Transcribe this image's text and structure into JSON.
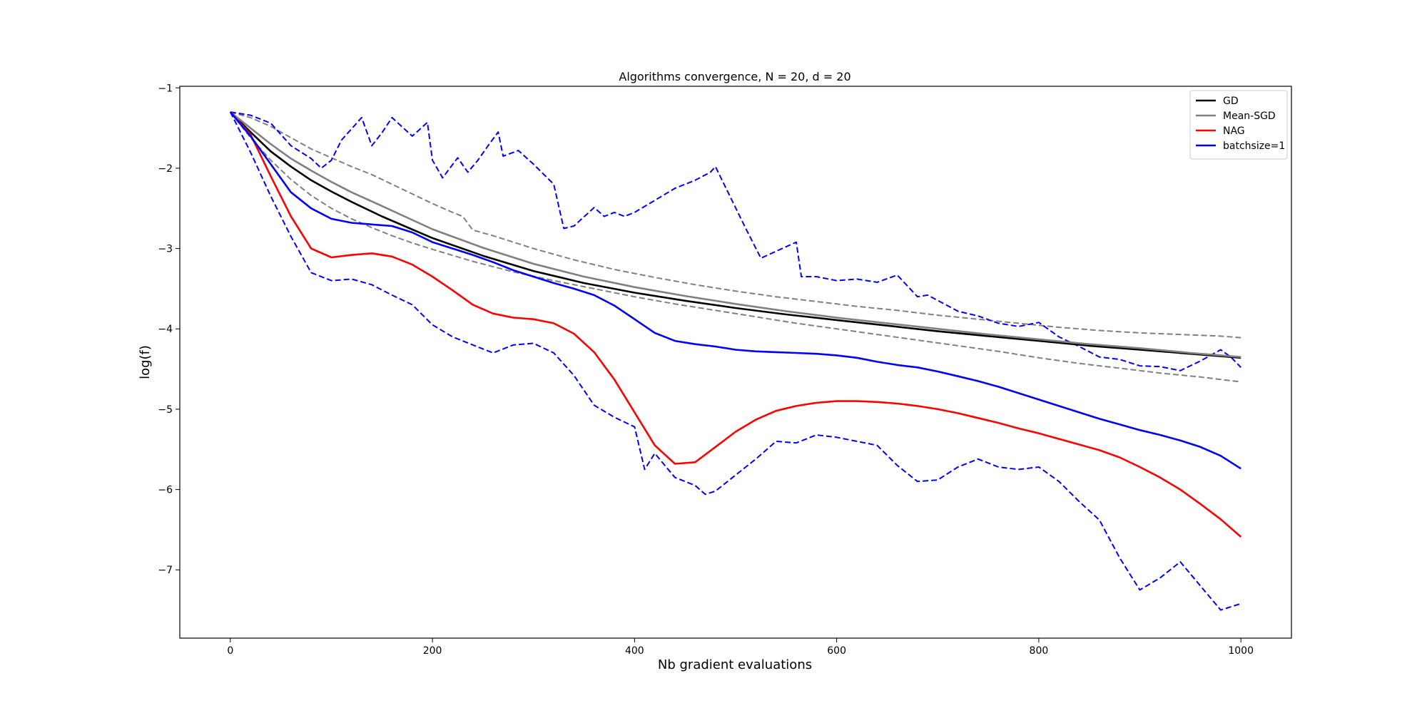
{
  "chart_data": {
    "type": "line",
    "title": "Algorithms convergence, N = 20, d = 20",
    "xlabel": "Nb gradient evaluations",
    "ylabel": "log(f)",
    "xlim": [
      -50,
      1050
    ],
    "ylim": [
      -7.85,
      -0.98
    ],
    "xticks": [
      0,
      200,
      400,
      600,
      800,
      1000
    ],
    "yticks": [
      -7,
      -6,
      -5,
      -4,
      -3,
      -2,
      -1
    ],
    "grid": false,
    "legend_position": "top-right",
    "series": [
      {
        "name": "GD",
        "color": "#000000",
        "style": "solid",
        "in_legend": true,
        "x": [
          0,
          20,
          40,
          60,
          80,
          100,
          120,
          150,
          200,
          250,
          300,
          350,
          400,
          450,
          500,
          550,
          600,
          650,
          700,
          750,
          800,
          850,
          900,
          950,
          1000
        ],
        "y": [
          -1.3,
          -1.55,
          -1.79,
          -1.98,
          -2.15,
          -2.29,
          -2.42,
          -2.6,
          -2.87,
          -3.09,
          -3.28,
          -3.43,
          -3.55,
          -3.65,
          -3.74,
          -3.82,
          -3.89,
          -3.96,
          -4.03,
          -4.09,
          -4.15,
          -4.21,
          -4.26,
          -4.31,
          -4.36
        ]
      },
      {
        "name": "Mean-SGD",
        "color": "#808080",
        "style": "solid",
        "in_legend": true,
        "x": [
          0,
          20,
          40,
          60,
          80,
          100,
          120,
          150,
          200,
          250,
          300,
          350,
          400,
          450,
          500,
          550,
          600,
          650,
          700,
          750,
          800,
          850,
          900,
          950,
          1000
        ],
        "y": [
          -1.3,
          -1.5,
          -1.7,
          -1.88,
          -2.03,
          -2.17,
          -2.3,
          -2.47,
          -2.76,
          -2.99,
          -3.19,
          -3.35,
          -3.48,
          -3.59,
          -3.69,
          -3.78,
          -3.86,
          -3.93,
          -4.0,
          -4.07,
          -4.13,
          -4.19,
          -4.24,
          -4.3,
          -4.35
        ]
      },
      {
        "name": "NAG",
        "color": "#ff0000",
        "style": "solid",
        "in_legend": true,
        "x": [
          0,
          20,
          40,
          60,
          80,
          100,
          120,
          140,
          160,
          180,
          200,
          220,
          240,
          260,
          280,
          300,
          320,
          340,
          360,
          380,
          400,
          420,
          440,
          460,
          480,
          500,
          520,
          540,
          560,
          580,
          600,
          620,
          640,
          660,
          680,
          700,
          720,
          740,
          760,
          780,
          800,
          820,
          840,
          860,
          880,
          900,
          920,
          940,
          960,
          980,
          1000
        ],
        "y": [
          -1.3,
          -1.58,
          -2.1,
          -2.6,
          -3.0,
          -3.11,
          -3.08,
          -3.06,
          -3.1,
          -3.2,
          -3.35,
          -3.52,
          -3.7,
          -3.81,
          -3.86,
          -3.88,
          -3.93,
          -4.06,
          -4.29,
          -4.63,
          -5.04,
          -5.45,
          -5.68,
          -5.66,
          -5.47,
          -5.28,
          -5.13,
          -5.02,
          -4.96,
          -4.92,
          -4.9,
          -4.9,
          -4.91,
          -4.93,
          -4.96,
          -5.0,
          -5.05,
          -5.11,
          -5.17,
          -5.24,
          -5.3,
          -5.37,
          -5.44,
          -5.51,
          -5.6,
          -5.72,
          -5.85,
          -6.0,
          -6.18,
          -6.37,
          -6.59
        ]
      },
      {
        "name": "batchsize=1",
        "color": "#0000ff",
        "style": "solid",
        "in_legend": true,
        "x": [
          0,
          20,
          40,
          60,
          80,
          100,
          120,
          140,
          160,
          180,
          200,
          220,
          240,
          260,
          280,
          300,
          320,
          340,
          360,
          380,
          400,
          420,
          440,
          460,
          480,
          500,
          520,
          540,
          560,
          580,
          600,
          620,
          640,
          660,
          680,
          700,
          720,
          740,
          760,
          780,
          800,
          820,
          840,
          860,
          880,
          900,
          920,
          940,
          960,
          980,
          1000
        ],
        "y": [
          -1.3,
          -1.6,
          -1.95,
          -2.3,
          -2.5,
          -2.63,
          -2.68,
          -2.7,
          -2.72,
          -2.8,
          -2.92,
          -3.0,
          -3.08,
          -3.17,
          -3.27,
          -3.35,
          -3.43,
          -3.5,
          -3.58,
          -3.71,
          -3.88,
          -4.05,
          -4.15,
          -4.19,
          -4.22,
          -4.26,
          -4.28,
          -4.29,
          -4.3,
          -4.31,
          -4.33,
          -4.36,
          -4.41,
          -4.45,
          -4.48,
          -4.53,
          -4.59,
          -4.65,
          -4.72,
          -4.8,
          -4.88,
          -4.96,
          -5.04,
          -5.12,
          -5.19,
          -5.26,
          -5.32,
          -5.39,
          -5.47,
          -5.58,
          -5.74
        ]
      },
      {
        "name": "",
        "color": "#808080",
        "style": "dashed",
        "in_legend": false,
        "x": [
          0,
          20,
          40,
          60,
          80,
          100,
          120,
          140,
          160,
          180,
          200,
          220,
          230,
          240,
          260,
          280,
          300,
          340,
          380,
          420,
          460,
          500,
          540,
          580,
          620,
          660,
          700,
          740,
          780,
          820,
          860,
          900,
          940,
          980,
          1000
        ],
        "y": [
          -1.3,
          -1.37,
          -1.48,
          -1.62,
          -1.76,
          -1.87,
          -1.98,
          -2.08,
          -2.2,
          -2.32,
          -2.44,
          -2.55,
          -2.6,
          -2.77,
          -2.84,
          -2.92,
          -3.0,
          -3.14,
          -3.26,
          -3.36,
          -3.45,
          -3.53,
          -3.6,
          -3.66,
          -3.72,
          -3.77,
          -3.83,
          -3.88,
          -3.93,
          -3.98,
          -4.02,
          -4.05,
          -4.07,
          -4.09,
          -4.11
        ]
      },
      {
        "name": "",
        "color": "#808080",
        "style": "dashed",
        "in_legend": false,
        "x": [
          0,
          20,
          40,
          60,
          80,
          100,
          120,
          140,
          160,
          180,
          200,
          240,
          280,
          320,
          360,
          400,
          440,
          480,
          520,
          560,
          600,
          640,
          680,
          720,
          760,
          800,
          840,
          880,
          920,
          960,
          1000
        ],
        "y": [
          -1.3,
          -1.62,
          -1.9,
          -2.14,
          -2.34,
          -2.5,
          -2.63,
          -2.74,
          -2.84,
          -2.93,
          -3.01,
          -3.16,
          -3.29,
          -3.4,
          -3.5,
          -3.6,
          -3.69,
          -3.77,
          -3.85,
          -3.93,
          -4.0,
          -4.07,
          -4.14,
          -4.21,
          -4.28,
          -4.36,
          -4.43,
          -4.49,
          -4.55,
          -4.6,
          -4.66
        ]
      },
      {
        "name": "",
        "color": "#0000ff",
        "style": "dashed",
        "in_legend": false,
        "x": [
          0,
          20,
          40,
          60,
          80,
          90,
          100,
          110,
          130,
          140,
          150,
          160,
          180,
          195,
          200,
          210,
          225,
          235,
          245,
          255,
          265,
          270,
          285,
          300,
          320,
          330,
          340,
          360,
          370,
          380,
          390,
          400,
          420,
          440,
          460,
          475,
          480,
          510,
          525,
          560,
          565,
          580,
          600,
          620,
          640,
          660,
          680,
          690,
          720,
          740,
          760,
          780,
          800,
          820,
          840,
          860,
          880,
          900,
          920,
          940,
          960,
          980,
          990,
          1000
        ],
        "y": [
          -1.3,
          -1.34,
          -1.44,
          -1.72,
          -1.88,
          -2.0,
          -1.9,
          -1.65,
          -1.37,
          -1.72,
          -1.56,
          -1.37,
          -1.6,
          -1.43,
          -1.9,
          -2.12,
          -1.87,
          -2.05,
          -1.9,
          -1.72,
          -1.55,
          -1.85,
          -1.78,
          -1.95,
          -2.2,
          -2.75,
          -2.72,
          -2.49,
          -2.6,
          -2.55,
          -2.6,
          -2.55,
          -2.4,
          -2.25,
          -2.15,
          -2.05,
          -1.98,
          -2.75,
          -3.12,
          -2.92,
          -3.35,
          -3.35,
          -3.4,
          -3.38,
          -3.42,
          -3.33,
          -3.6,
          -3.58,
          -3.78,
          -3.84,
          -3.93,
          -3.97,
          -3.92,
          -4.1,
          -4.22,
          -4.35,
          -4.38,
          -4.46,
          -4.47,
          -4.52,
          -4.4,
          -4.26,
          -4.35,
          -4.48
        ]
      },
      {
        "name": "",
        "color": "#0000ff",
        "style": "dashed",
        "in_legend": false,
        "x": [
          0,
          20,
          40,
          60,
          80,
          100,
          120,
          140,
          160,
          180,
          200,
          220,
          240,
          260,
          280,
          300,
          320,
          340,
          360,
          380,
          400,
          410,
          420,
          440,
          460,
          470,
          480,
          500,
          520,
          540,
          560,
          580,
          600,
          620,
          640,
          660,
          680,
          700,
          720,
          740,
          760,
          780,
          800,
          820,
          840,
          860,
          880,
          900,
          920,
          940,
          960,
          980,
          1000
        ],
        "y": [
          -1.3,
          -1.8,
          -2.35,
          -2.85,
          -3.3,
          -3.4,
          -3.38,
          -3.45,
          -3.58,
          -3.7,
          -3.95,
          -4.1,
          -4.2,
          -4.3,
          -4.2,
          -4.18,
          -4.3,
          -4.58,
          -4.95,
          -5.1,
          -5.22,
          -5.75,
          -5.55,
          -5.85,
          -5.95,
          -6.06,
          -6.02,
          -5.82,
          -5.62,
          -5.4,
          -5.42,
          -5.32,
          -5.35,
          -5.4,
          -5.45,
          -5.7,
          -5.9,
          -5.88,
          -5.72,
          -5.62,
          -5.72,
          -5.75,
          -5.72,
          -5.9,
          -6.15,
          -6.38,
          -6.85,
          -7.25,
          -7.1,
          -6.9,
          -7.2,
          -7.5,
          -7.42
        ]
      }
    ]
  }
}
